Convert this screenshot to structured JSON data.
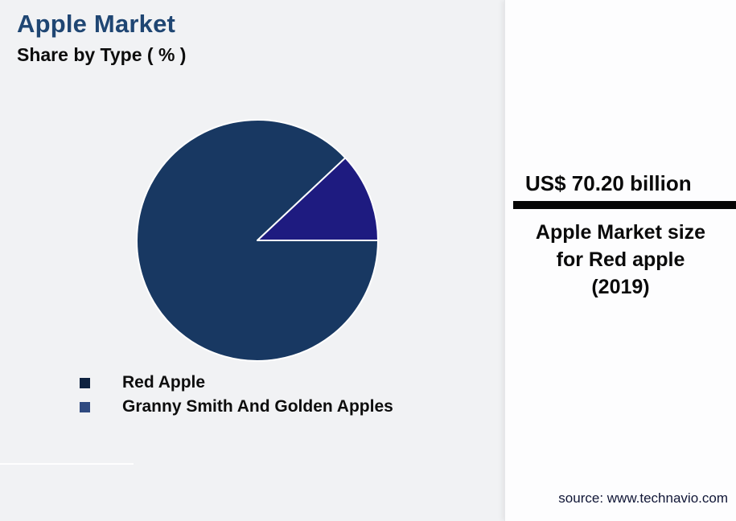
{
  "page": {
    "background": "#f1f2f4",
    "panel_background": "#fdfdfe"
  },
  "header": {
    "title": "Apple Market",
    "subtitle": "Share by Type ( % )",
    "title_color": "#1f4673"
  },
  "chart_data": {
    "type": "pie",
    "title": "Apple Market Share by Type ( % )",
    "values_unit": "percent",
    "slices": [
      {
        "label": "Red Apple",
        "value": 88,
        "color": "#183862",
        "legend_color": "#0e2240"
      },
      {
        "label": "Granny Smith And Golden Apples",
        "value": 12,
        "color": "#1e1b80",
        "legend_color": "#2f4a80"
      }
    ],
    "start_angle_deg": 43.2,
    "direction": "counterclockwise",
    "slice_stroke_color": "#ffffff",
    "legend_position": "bottom-left"
  },
  "stat_panel": {
    "value": "US$ 70.20 billion",
    "label_lines": [
      "Apple Market size",
      "for Red apple",
      "(2019)"
    ],
    "divider_color": "#050505",
    "source": "source: www.technavio.com",
    "source_color": "#101636"
  }
}
